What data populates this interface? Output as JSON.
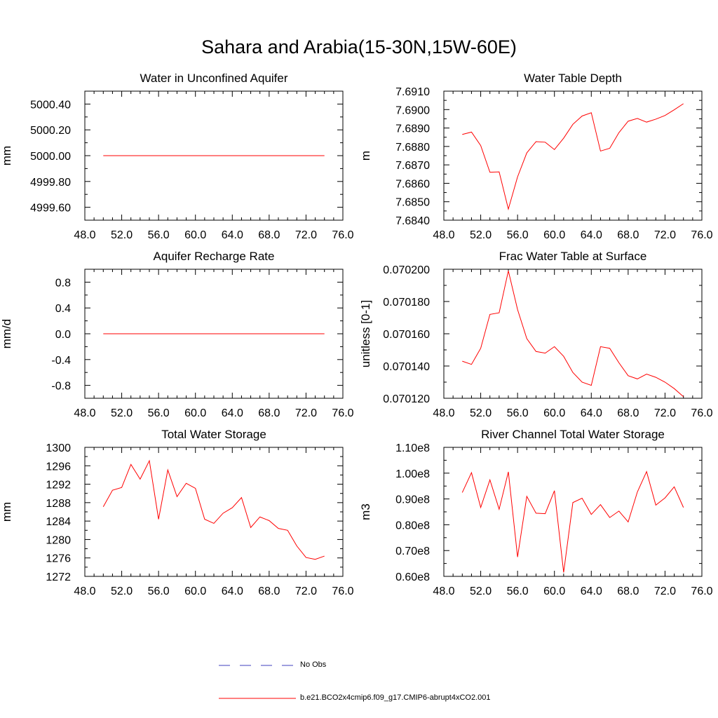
{
  "page": {
    "title": "Sahara and Arabia(15-30N,15W-60E)"
  },
  "colors": {
    "model_line": "#ff0000",
    "obs_line": "#3f3fbf",
    "axis": "#000000"
  },
  "legend": {
    "obs_label": "No Obs",
    "model_label": "b.e21.BCO2x4cmip6.f09_g17.CMIP6-abrupt4xCO2.001"
  },
  "chart_data": [
    {
      "type": "line",
      "title": "Water in Unconfined Aquifer",
      "ylabel": "mm",
      "xlim": [
        48,
        76
      ],
      "ylim": [
        4999.5,
        5000.5
      ],
      "xticks": [
        48,
        52,
        56,
        60,
        64,
        68,
        72,
        76
      ],
      "xtick_labels": [
        "48.0",
        "52.0",
        "56.0",
        "60.0",
        "64.0",
        "68.0",
        "72.0",
        "76.0"
      ],
      "yticks": [
        4999.6,
        4999.8,
        5000.0,
        5000.2,
        5000.4
      ],
      "ytick_labels": [
        "4999.60",
        "4999.80",
        "5000.00",
        "5000.20",
        "5000.40"
      ],
      "x": [
        50,
        74
      ],
      "y": [
        5000.0,
        5000.0
      ]
    },
    {
      "type": "line",
      "title": "Water Table Depth",
      "ylabel": "m",
      "xlim": [
        48,
        76
      ],
      "ylim": [
        7.684,
        7.691
      ],
      "xticks": [
        48,
        52,
        56,
        60,
        64,
        68,
        72,
        76
      ],
      "xtick_labels": [
        "48.0",
        "52.0",
        "56.0",
        "60.0",
        "64.0",
        "68.0",
        "72.0",
        "76.0"
      ],
      "yticks": [
        7.684,
        7.685,
        7.686,
        7.687,
        7.688,
        7.689,
        7.69,
        7.691
      ],
      "ytick_labels": [
        "7.6840",
        "7.6850",
        "7.6860",
        "7.6870",
        "7.6880",
        "7.6890",
        "7.6900",
        "7.6910"
      ],
      "x": [
        50,
        51,
        52,
        53,
        54,
        55,
        56,
        57,
        58,
        59,
        60,
        61,
        62,
        63,
        64,
        65,
        66,
        67,
        68,
        69,
        70,
        71,
        72,
        73,
        74
      ],
      "y": [
        7.68865,
        7.68878,
        7.68805,
        7.6866,
        7.68662,
        7.6846,
        7.68635,
        7.68765,
        7.68826,
        7.68823,
        7.68783,
        7.68845,
        7.6892,
        7.68965,
        7.68983,
        7.68775,
        7.6879,
        7.68875,
        7.68937,
        7.68952,
        7.68932,
        7.68948,
        7.68968,
        7.68999,
        7.69032
      ]
    },
    {
      "type": "line",
      "title": "Aquifer Recharge Rate",
      "ylabel": "mm/d",
      "xlim": [
        48,
        76
      ],
      "ylim": [
        -1.0,
        1.0
      ],
      "xticks": [
        48,
        52,
        56,
        60,
        64,
        68,
        72,
        76
      ],
      "xtick_labels": [
        "48.0",
        "52.0",
        "56.0",
        "60.0",
        "64.0",
        "68.0",
        "72.0",
        "76.0"
      ],
      "yticks": [
        -0.8,
        -0.4,
        0.0,
        0.4,
        0.8
      ],
      "ytick_labels": [
        "-0.8",
        "-0.4",
        "0.0",
        "0.4",
        "0.8"
      ],
      "x": [
        50,
        74
      ],
      "y": [
        0.0,
        0.0
      ]
    },
    {
      "type": "line",
      "title": "Frac Water Table at Surface",
      "ylabel": "unitless [0-1]",
      "xlim": [
        48,
        76
      ],
      "ylim": [
        0.07012,
        0.0702
      ],
      "xticks": [
        48,
        52,
        56,
        60,
        64,
        68,
        72,
        76
      ],
      "xtick_labels": [
        "48.0",
        "52.0",
        "56.0",
        "60.0",
        "64.0",
        "68.0",
        "72.0",
        "76.0"
      ],
      "yticks": [
        0.07012,
        0.07014,
        0.07016,
        0.07018,
        0.0702
      ],
      "ytick_labels": [
        "0.070120",
        "0.070140",
        "0.070160",
        "0.070180",
        "0.070200"
      ],
      "x": [
        50,
        51,
        52,
        53,
        54,
        55,
        56,
        57,
        58,
        59,
        60,
        61,
        62,
        63,
        64,
        65,
        66,
        67,
        68,
        69,
        70,
        71,
        72,
        73,
        74
      ],
      "y": [
        0.070143,
        0.070141,
        0.070151,
        0.070172,
        0.070173,
        0.070199,
        0.070175,
        0.070157,
        0.070149,
        0.070148,
        0.070152,
        0.070146,
        0.070136,
        0.07013,
        0.070128,
        0.070152,
        0.070151,
        0.070142,
        0.070134,
        0.070132,
        0.070135,
        0.070133,
        0.07013,
        0.070126,
        0.070121
      ]
    },
    {
      "type": "line",
      "title": "Total Water Storage",
      "ylabel": "mm",
      "xlim": [
        48,
        76
      ],
      "ylim": [
        1272,
        1300
      ],
      "xticks": [
        48,
        52,
        56,
        60,
        64,
        68,
        72,
        76
      ],
      "xtick_labels": [
        "48.0",
        "52.0",
        "56.0",
        "60.0",
        "64.0",
        "68.0",
        "72.0",
        "76.0"
      ],
      "yticks": [
        1272,
        1276,
        1280,
        1284,
        1288,
        1292,
        1296,
        1300
      ],
      "ytick_labels": [
        "1272",
        "1276",
        "1280",
        "1284",
        "1288",
        "1292",
        "1296",
        "1300"
      ],
      "x": [
        50,
        51,
        52,
        53,
        54,
        55,
        56,
        57,
        58,
        59,
        60,
        61,
        62,
        63,
        64,
        65,
        66,
        67,
        68,
        69,
        70,
        71,
        72,
        73,
        74
      ],
      "y": [
        1287.1,
        1290.7,
        1291.3,
        1296.3,
        1293.1,
        1297.1,
        1284.4,
        1295.1,
        1289.3,
        1292.2,
        1291.1,
        1284.4,
        1283.5,
        1285.7,
        1286.9,
        1289.1,
        1282.6,
        1284.9,
        1284.1,
        1282.4,
        1282.0,
        1278.6,
        1276.1,
        1275.7,
        1276.4
      ]
    },
    {
      "type": "line",
      "title": "River Channel Total Water Storage",
      "ylabel": "m3",
      "xlim": [
        48,
        76
      ],
      "ylim": [
        60000000.0,
        110000000.0
      ],
      "xticks": [
        48,
        52,
        56,
        60,
        64,
        68,
        72,
        76
      ],
      "xtick_labels": [
        "48.0",
        "52.0",
        "56.0",
        "60.0",
        "64.0",
        "68.0",
        "72.0",
        "76.0"
      ],
      "yticks": [
        60000000.0,
        70000000.0,
        80000000.0,
        90000000.0,
        100000000.0,
        110000000.0
      ],
      "ytick_labels": [
        "0.60e8",
        "0.70e8",
        "0.80e8",
        "0.90e8",
        "1.00e8",
        "1.10e8"
      ],
      "x": [
        50,
        51,
        52,
        53,
        54,
        55,
        56,
        57,
        58,
        59,
        60,
        61,
        62,
        63,
        64,
        65,
        66,
        67,
        68,
        69,
        70,
        71,
        72,
        73,
        74
      ],
      "y": [
        92500000.0,
        100200000.0,
        86700000.0,
        97400000.0,
        86000000.0,
        100500000.0,
        67500000.0,
        91000000.0,
        84500000.0,
        84300000.0,
        93200000.0,
        61500000.0,
        88600000.0,
        90300000.0,
        84000000.0,
        87800000.0,
        82800000.0,
        85300000.0,
        81100000.0,
        92700000.0,
        100600000.0,
        87600000.0,
        90400000.0,
        94700000.0,
        86700000.0
      ]
    }
  ]
}
